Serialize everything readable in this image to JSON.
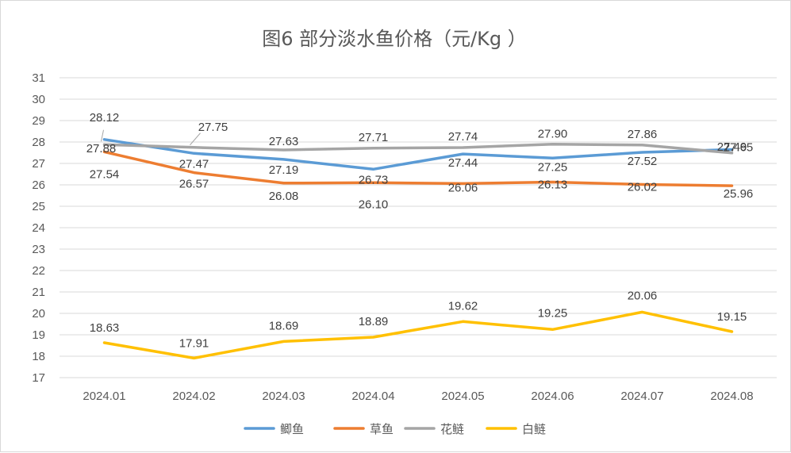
{
  "chart_data": {
    "type": "line",
    "title": "图6  部分淡水鱼价格（元/Kg ）",
    "xlabel": "",
    "ylabel": "",
    "categories": [
      "2024.01",
      "2024.02",
      "2024.03",
      "2024.04",
      "2024.05",
      "2024.06",
      "2024.07",
      "2024.08"
    ],
    "ylim": [
      17,
      31
    ],
    "y_ticks": [
      "17",
      "18",
      "19",
      "20",
      "21",
      "22",
      "23",
      "24",
      "25",
      "26",
      "27",
      "28",
      "29",
      "30",
      "31"
    ],
    "grid": true,
    "legend_position": "bottom",
    "series": [
      {
        "name": "鲫鱼",
        "color": "#5b9bd5",
        "values": [
          28.12,
          27.47,
          27.19,
          26.73,
          27.44,
          27.25,
          27.52,
          27.65
        ],
        "labels": [
          "28.12",
          "27.47",
          "27.19",
          "26.73",
          "27.44",
          "27.25",
          "27.52",
          "27.65"
        ]
      },
      {
        "name": "草鱼",
        "color": "#ed7d31",
        "values": [
          27.54,
          26.57,
          26.08,
          26.1,
          26.06,
          26.13,
          26.02,
          25.96
        ],
        "labels": [
          "27.54",
          "26.57",
          "26.08",
          "26.10",
          "26.06",
          "26.13",
          "26.02",
          "25.96"
        ]
      },
      {
        "name": "花鲢",
        "color": "#a5a5a5",
        "values": [
          27.88,
          27.75,
          27.63,
          27.71,
          27.74,
          27.9,
          27.86,
          27.49
        ],
        "labels": [
          "27.88",
          "27.75",
          "27.63",
          "27.71",
          "27.74",
          "27.90",
          "27.86",
          "27.49"
        ]
      },
      {
        "name": "白鲢",
        "color": "#ffc000",
        "values": [
          18.63,
          17.91,
          18.69,
          18.89,
          19.62,
          19.25,
          20.06,
          19.15
        ],
        "labels": [
          "18.63",
          "17.91",
          "18.69",
          "18.89",
          "19.62",
          "19.25",
          "20.06",
          "19.15"
        ]
      }
    ]
  }
}
